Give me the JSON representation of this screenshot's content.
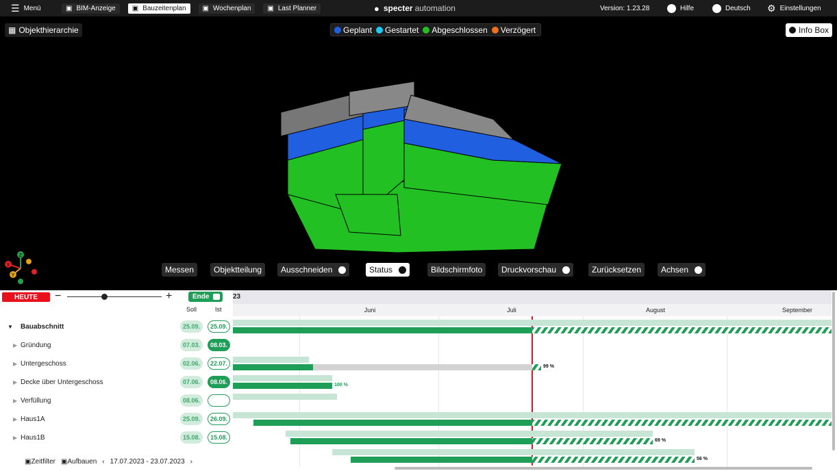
{
  "topbar": {
    "menu": "Menü",
    "tabs": [
      "BIM-Anzeige",
      "Bauzeitenplan",
      "Wochenplan",
      "Last Planner"
    ],
    "brand": {
      "name": "specter",
      "suffix": "automation"
    },
    "version": "Version: 1.23.28",
    "help": "Hilfe",
    "language": "Deutsch",
    "settings": "Einstellungen"
  },
  "viewer": {
    "hierarchy_button": "Objekthierarchie",
    "info_button": "Info Box",
    "legend": [
      {
        "label": "Geplant",
        "color": "#1f5fe0"
      },
      {
        "label": "Gestartet",
        "color": "#1ec8f0"
      },
      {
        "label": "Abgeschlossen",
        "color": "#22c022"
      },
      {
        "label": "Verzögert",
        "color": "#f07020"
      }
    ],
    "axes": [
      "X",
      "Y",
      "Z"
    ],
    "toolbar": [
      "Messen",
      "Objektteilung",
      "Ausschneiden",
      "Status",
      "Bildschirmfoto",
      "Druckvorschau",
      "Zurücksetzen",
      "Achsen"
    ]
  },
  "gantt": {
    "today_button": "HEUTE",
    "end_toggle": "Ende",
    "year_fragment": "23",
    "columns": {
      "planned": "Soll",
      "actual": "Ist"
    },
    "months": [
      "Juni",
      "Juli",
      "August",
      "September"
    ],
    "rows": [
      {
        "name": "Bauabschnitt",
        "planned": "25.09.",
        "actual": "25.09."
      },
      {
        "name": "Gründung",
        "planned": "07.03.",
        "actual": "08.03."
      },
      {
        "name": "Untergeschoss",
        "planned": "02.06.",
        "actual": "22.07.",
        "progress": "99 %"
      },
      {
        "name": "Decke über Untergeschoss",
        "planned": "07.06.",
        "actual": "08.06.",
        "progress": "100 %"
      },
      {
        "name": "Verfüllung",
        "planned": "08.06."
      },
      {
        "name": "Haus1A",
        "planned": "25.09.",
        "actual": "26.09."
      },
      {
        "name": "Haus1B",
        "planned": "15.08.",
        "actual": "15.08.",
        "progress": "69 %"
      },
      {
        "progress": "56 %"
      }
    ],
    "footer": {
      "filter": "Zeitfilter",
      "build": "Aufbauen",
      "range": "17.07.2023 - 23.07.2023"
    }
  }
}
